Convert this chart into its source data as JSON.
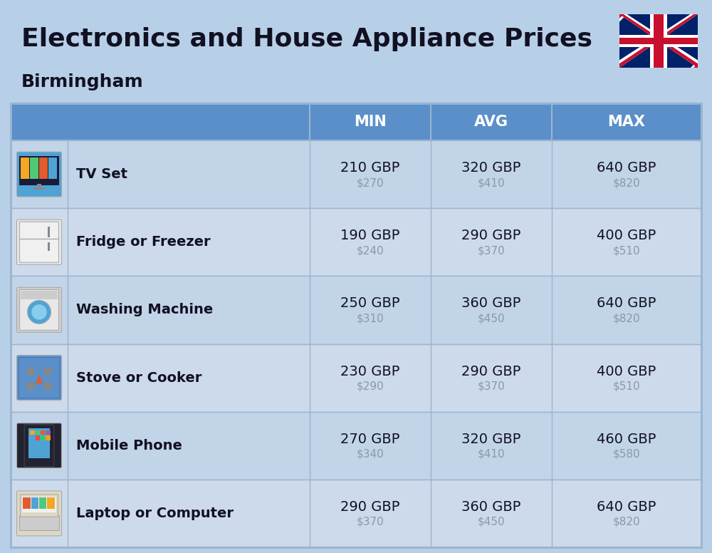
{
  "title": "Electronics and House Appliance Prices",
  "subtitle": "Birmingham",
  "background_color": "#b8cfe8",
  "header_color": "#5b8fc9",
  "header_text_color": "#ffffff",
  "row_colors": [
    "#c2d4e8",
    "#cddaec"
  ],
  "divider_color": "#9ab5d0",
  "text_color": "#111122",
  "usd_color": "#8899aa",
  "columns": [
    "MIN",
    "AVG",
    "MAX"
  ],
  "rows": [
    {
      "name": "TV Set",
      "min_gbp": "210 GBP",
      "min_usd": "$270",
      "avg_gbp": "320 GBP",
      "avg_usd": "$410",
      "max_gbp": "640 GBP",
      "max_usd": "$820"
    },
    {
      "name": "Fridge or Freezer",
      "min_gbp": "190 GBP",
      "min_usd": "$240",
      "avg_gbp": "290 GBP",
      "avg_usd": "$370",
      "max_gbp": "400 GBP",
      "max_usd": "$510"
    },
    {
      "name": "Washing Machine",
      "min_gbp": "250 GBP",
      "min_usd": "$310",
      "avg_gbp": "360 GBP",
      "avg_usd": "$450",
      "max_gbp": "640 GBP",
      "max_usd": "$820"
    },
    {
      "name": "Stove or Cooker",
      "min_gbp": "230 GBP",
      "min_usd": "$290",
      "avg_gbp": "290 GBP",
      "avg_usd": "$370",
      "max_gbp": "400 GBP",
      "max_usd": "$510"
    },
    {
      "name": "Mobile Phone",
      "min_gbp": "270 GBP",
      "min_usd": "$340",
      "avg_gbp": "320 GBP",
      "avg_usd": "$410",
      "max_gbp": "460 GBP",
      "max_usd": "$580"
    },
    {
      "name": "Laptop or Computer",
      "min_gbp": "290 GBP",
      "min_usd": "$370",
      "avg_gbp": "360 GBP",
      "avg_usd": "$450",
      "max_gbp": "640 GBP",
      "max_usd": "$820"
    }
  ]
}
